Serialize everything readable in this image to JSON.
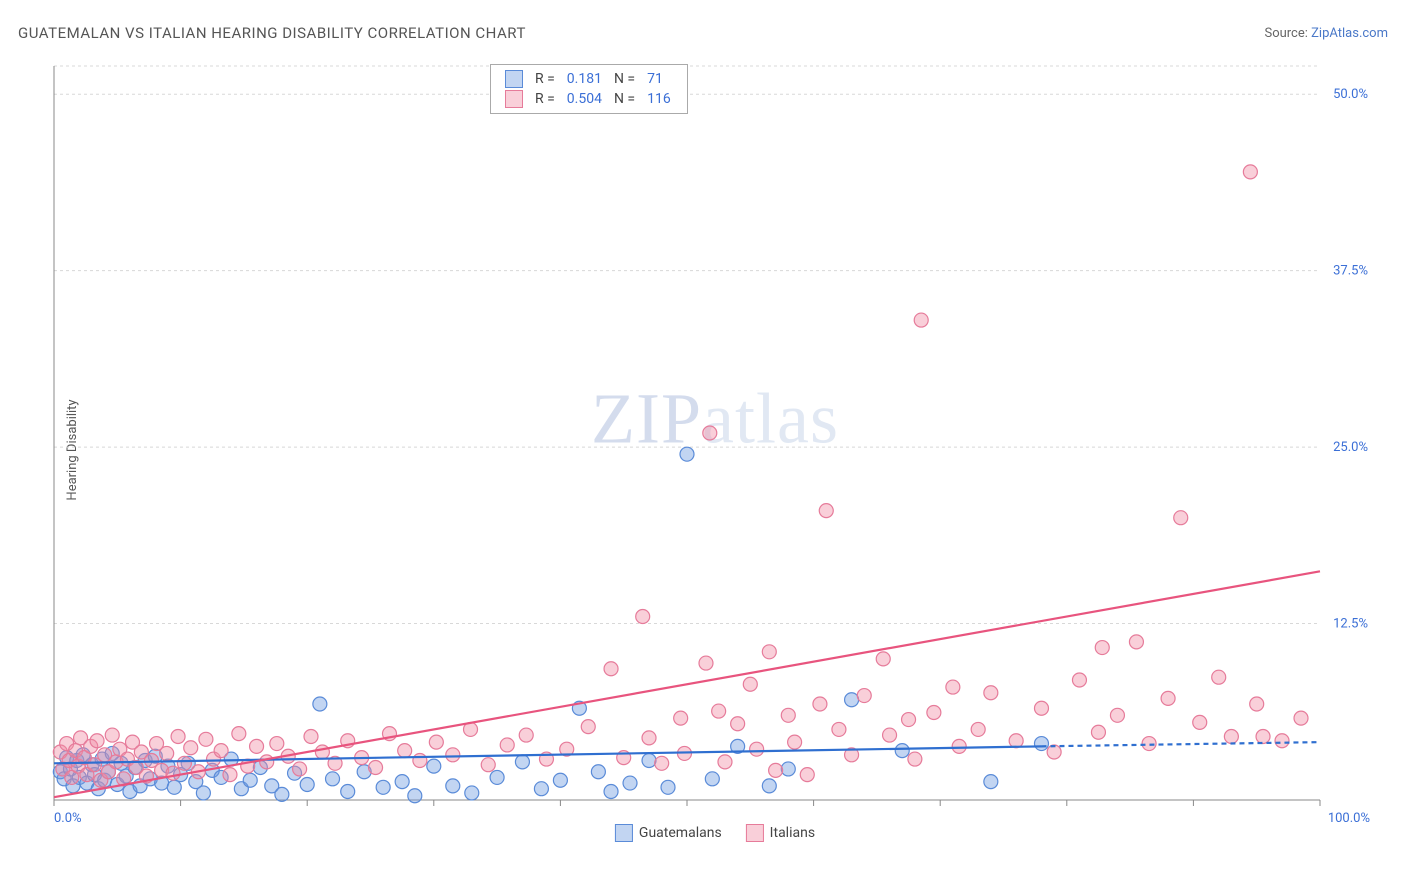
{
  "title": "GUATEMALAN VS ITALIAN HEARING DISABILITY CORRELATION CHART",
  "source_prefix": "Source: ",
  "source_link": "ZipAtlas.com",
  "y_axis_label": "Hearing Disability",
  "watermark_zip": "ZIP",
  "watermark_atlas": "atlas",
  "chart": {
    "type": "scatter",
    "xlim": [
      0,
      100
    ],
    "ylim": [
      0,
      52
    ],
    "x_ticks": [
      0,
      10,
      20,
      30,
      40,
      50,
      60,
      70,
      80,
      90,
      100
    ],
    "y_gridlines": [
      12.5,
      25.0,
      37.5,
      50.0
    ],
    "y_tick_labels": [
      "12.5%",
      "25.0%",
      "37.5%",
      "50.0%"
    ],
    "x_min_label": "0.0%",
    "x_max_label": "100.0%",
    "background_color": "#ffffff",
    "grid_color": "#d8d8d8",
    "axis_color": "#888888",
    "tick_label_color": "#3b6fd6",
    "marker_radius": 7,
    "marker_stroke_width": 1.2,
    "trend_line_width": 2.2,
    "series": [
      {
        "name": "Guatemalans",
        "fill": "rgba(110,155,225,0.42)",
        "stroke": "#5a8bd8",
        "line_color": "#2f6fd0",
        "R": "0.181",
        "N": "71",
        "trend": {
          "x1": 0,
          "y1": 2.6,
          "x2": 78,
          "y2": 3.8,
          "dash_x2": 100,
          "dash_y2": 4.1
        },
        "points": [
          [
            0.5,
            2.0
          ],
          [
            0.8,
            1.5
          ],
          [
            1.0,
            3.0
          ],
          [
            1.3,
            2.2
          ],
          [
            1.5,
            1.0
          ],
          [
            1.8,
            2.8
          ],
          [
            2.0,
            1.6
          ],
          [
            2.3,
            3.2
          ],
          [
            2.6,
            1.2
          ],
          [
            3.0,
            2.5
          ],
          [
            3.2,
            1.8
          ],
          [
            3.5,
            0.8
          ],
          [
            3.8,
            2.9
          ],
          [
            4.0,
            1.4
          ],
          [
            4.3,
            2.0
          ],
          [
            4.6,
            3.3
          ],
          [
            5.0,
            1.1
          ],
          [
            5.3,
            2.6
          ],
          [
            5.7,
            1.7
          ],
          [
            6.0,
            0.6
          ],
          [
            6.4,
            2.3
          ],
          [
            6.8,
            1.0
          ],
          [
            7.2,
            2.8
          ],
          [
            7.6,
            1.5
          ],
          [
            8.0,
            3.1
          ],
          [
            8.5,
            1.2
          ],
          [
            9.0,
            2.4
          ],
          [
            9.5,
            0.9
          ],
          [
            10.0,
            1.8
          ],
          [
            10.6,
            2.6
          ],
          [
            11.2,
            1.3
          ],
          [
            11.8,
            0.5
          ],
          [
            12.5,
            2.1
          ],
          [
            13.2,
            1.6
          ],
          [
            14.0,
            2.9
          ],
          [
            14.8,
            0.8
          ],
          [
            15.5,
            1.4
          ],
          [
            16.3,
            2.3
          ],
          [
            17.2,
            1.0
          ],
          [
            18.0,
            0.4
          ],
          [
            19.0,
            1.9
          ],
          [
            20.0,
            1.1
          ],
          [
            21.0,
            6.8
          ],
          [
            22.0,
            1.5
          ],
          [
            23.2,
            0.6
          ],
          [
            24.5,
            2.0
          ],
          [
            26.0,
            0.9
          ],
          [
            27.5,
            1.3
          ],
          [
            28.5,
            0.3
          ],
          [
            30.0,
            2.4
          ],
          [
            31.5,
            1.0
          ],
          [
            33.0,
            0.5
          ],
          [
            35.0,
            1.6
          ],
          [
            37.0,
            2.7
          ],
          [
            38.5,
            0.8
          ],
          [
            40.0,
            1.4
          ],
          [
            41.5,
            6.5
          ],
          [
            43.0,
            2.0
          ],
          [
            44.0,
            0.6
          ],
          [
            45.5,
            1.2
          ],
          [
            47.0,
            2.8
          ],
          [
            48.5,
            0.9
          ],
          [
            50.0,
            24.5
          ],
          [
            52.0,
            1.5
          ],
          [
            54.0,
            3.8
          ],
          [
            56.5,
            1.0
          ],
          [
            58.0,
            2.2
          ],
          [
            63.0,
            7.1
          ],
          [
            67.0,
            3.5
          ],
          [
            74.0,
            1.3
          ],
          [
            78.0,
            4.0
          ]
        ]
      },
      {
        "name": "Italians",
        "fill": "rgba(240,140,165,0.42)",
        "stroke": "#e67b9a",
        "line_color": "#e8547e",
        "R": "0.504",
        "N": "116",
        "trend": {
          "x1": 0,
          "y1": 0.2,
          "x2": 100,
          "y2": 16.2
        },
        "points": [
          [
            0.5,
            3.4
          ],
          [
            0.7,
            2.2
          ],
          [
            1.0,
            4.0
          ],
          [
            1.2,
            2.8
          ],
          [
            1.4,
            1.6
          ],
          [
            1.7,
            3.5
          ],
          [
            1.9,
            2.4
          ],
          [
            2.1,
            4.4
          ],
          [
            2.4,
            3.0
          ],
          [
            2.6,
            1.8
          ],
          [
            2.9,
            3.8
          ],
          [
            3.2,
            2.5
          ],
          [
            3.4,
            4.2
          ],
          [
            3.7,
            1.4
          ],
          [
            4.0,
            3.2
          ],
          [
            4.3,
            2.0
          ],
          [
            4.6,
            4.6
          ],
          [
            4.9,
            2.7
          ],
          [
            5.2,
            3.6
          ],
          [
            5.5,
            1.5
          ],
          [
            5.8,
            2.9
          ],
          [
            6.2,
            4.1
          ],
          [
            6.5,
            2.3
          ],
          [
            6.9,
            3.4
          ],
          [
            7.3,
            1.7
          ],
          [
            7.7,
            2.8
          ],
          [
            8.1,
            4.0
          ],
          [
            8.5,
            2.1
          ],
          [
            8.9,
            3.3
          ],
          [
            9.4,
            1.9
          ],
          [
            9.8,
            4.5
          ],
          [
            10.3,
            2.6
          ],
          [
            10.8,
            3.7
          ],
          [
            11.4,
            2.0
          ],
          [
            12.0,
            4.3
          ],
          [
            12.6,
            2.9
          ],
          [
            13.2,
            3.5
          ],
          [
            13.9,
            1.8
          ],
          [
            14.6,
            4.7
          ],
          [
            15.3,
            2.4
          ],
          [
            16.0,
            3.8
          ],
          [
            16.8,
            2.7
          ],
          [
            17.6,
            4.0
          ],
          [
            18.5,
            3.1
          ],
          [
            19.4,
            2.2
          ],
          [
            20.3,
            4.5
          ],
          [
            21.2,
            3.4
          ],
          [
            22.2,
            2.6
          ],
          [
            23.2,
            4.2
          ],
          [
            24.3,
            3.0
          ],
          [
            25.4,
            2.3
          ],
          [
            26.5,
            4.7
          ],
          [
            27.7,
            3.5
          ],
          [
            28.9,
            2.8
          ],
          [
            30.2,
            4.1
          ],
          [
            31.5,
            3.2
          ],
          [
            32.9,
            5.0
          ],
          [
            34.3,
            2.5
          ],
          [
            35.8,
            3.9
          ],
          [
            37.3,
            4.6
          ],
          [
            38.9,
            2.9
          ],
          [
            40.5,
            3.6
          ],
          [
            42.2,
            5.2
          ],
          [
            44.0,
            9.3
          ],
          [
            45.0,
            3.0
          ],
          [
            46.5,
            13.0
          ],
          [
            47.0,
            4.4
          ],
          [
            48.0,
            2.6
          ],
          [
            49.5,
            5.8
          ],
          [
            49.8,
            3.3
          ],
          [
            51.5,
            9.7
          ],
          [
            51.8,
            26.0
          ],
          [
            52.5,
            6.3
          ],
          [
            53.0,
            2.7
          ],
          [
            54.0,
            5.4
          ],
          [
            55.0,
            8.2
          ],
          [
            55.5,
            3.6
          ],
          [
            56.5,
            10.5
          ],
          [
            57.0,
            2.1
          ],
          [
            58.0,
            6.0
          ],
          [
            58.5,
            4.1
          ],
          [
            59.5,
            1.8
          ],
          [
            60.5,
            6.8
          ],
          [
            61.0,
            20.5
          ],
          [
            62.0,
            5.0
          ],
          [
            63.0,
            3.2
          ],
          [
            64.0,
            7.4
          ],
          [
            65.5,
            10.0
          ],
          [
            66.0,
            4.6
          ],
          [
            67.5,
            5.7
          ],
          [
            68.0,
            2.9
          ],
          [
            68.5,
            34.0
          ],
          [
            69.5,
            6.2
          ],
          [
            71.0,
            8.0
          ],
          [
            71.5,
            3.8
          ],
          [
            73.0,
            5.0
          ],
          [
            74.0,
            7.6
          ],
          [
            76.0,
            4.2
          ],
          [
            78.0,
            6.5
          ],
          [
            79.0,
            3.4
          ],
          [
            81.0,
            8.5
          ],
          [
            82.5,
            4.8
          ],
          [
            82.8,
            10.8
          ],
          [
            84.0,
            6.0
          ],
          [
            85.5,
            11.2
          ],
          [
            86.5,
            4.0
          ],
          [
            88.0,
            7.2
          ],
          [
            89.0,
            20.0
          ],
          [
            90.5,
            5.5
          ],
          [
            92.0,
            8.7
          ],
          [
            93.0,
            4.5
          ],
          [
            94.5,
            44.5
          ],
          [
            95.0,
            6.8
          ],
          [
            95.5,
            4.5
          ],
          [
            97.0,
            4.2
          ],
          [
            98.5,
            5.8
          ]
        ]
      }
    ]
  },
  "legend": {
    "R_label": "R =",
    "N_label": "N ="
  },
  "bottom_legend": {
    "series1": "Guatemalans",
    "series2": "Italians"
  }
}
